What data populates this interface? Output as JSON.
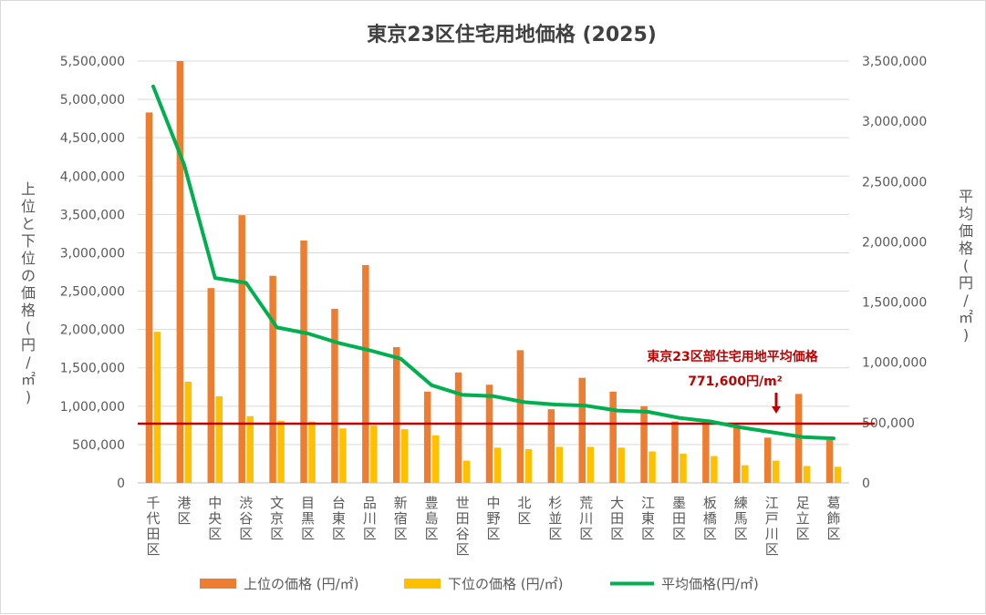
{
  "chart_data": {
    "type": "bar",
    "title": "東京23区住宅用地価格 (2025)",
    "ylabel_left": "上位と下位の価格(円/㎡)",
    "ylabel_right": "平均価格(円/㎡)",
    "ylim_left": [
      0,
      5500000
    ],
    "ylim_right": [
      0,
      3500000
    ],
    "yticks_left": [
      "0",
      "500,000",
      "1,000,000",
      "1,500,000",
      "2,000,000",
      "2,500,000",
      "3,000,000",
      "3,500,000",
      "4,000,000",
      "4,500,000",
      "5,000,000",
      "5,500,000"
    ],
    "yticks_right": [
      "0",
      "500,000",
      "1,000,000",
      "1,500,000",
      "2,000,000",
      "2,500,000",
      "3,000,000",
      "3,500,000"
    ],
    "grid": true,
    "legend_position": "bottom",
    "categories": [
      "千代田区",
      "港区",
      "中央区",
      "渋谷区",
      "文京区",
      "目黒区",
      "台東区",
      "品川区",
      "新宿区",
      "豊島区",
      "世田谷区",
      "中野区",
      "北区",
      "杉並区",
      "荒川区",
      "大田区",
      "江東区",
      "墨田区",
      "板橋区",
      "練馬区",
      "江戸川区",
      "足立区",
      "葛飾区"
    ],
    "series": [
      {
        "name": "上位の価格 (円/㎡)",
        "kind": "bar",
        "axis": "left",
        "color": "#ed7d31",
        "values": [
          4830000,
          5500000,
          2540000,
          3490000,
          2700000,
          3160000,
          2270000,
          2840000,
          1770000,
          1190000,
          1440000,
          1280000,
          1730000,
          960000,
          1370000,
          1190000,
          1000000,
          800000,
          800000,
          720000,
          590000,
          1160000,
          560000
        ]
      },
      {
        "name": "下位の価格 (円/㎡)",
        "kind": "bar",
        "axis": "left",
        "color": "#ffc000",
        "values": [
          1970000,
          1320000,
          1130000,
          870000,
          810000,
          800000,
          710000,
          750000,
          700000,
          620000,
          290000,
          460000,
          440000,
          470000,
          470000,
          460000,
          410000,
          380000,
          350000,
          230000,
          290000,
          220000,
          210000
        ]
      },
      {
        "name": "平均価格(円/㎡)",
        "kind": "line",
        "axis": "right",
        "color": "#00b050",
        "values": [
          3290000,
          2640000,
          1700000,
          1660000,
          1290000,
          1240000,
          1160000,
          1100000,
          1030000,
          810000,
          730000,
          720000,
          670000,
          650000,
          640000,
          600000,
          590000,
          540000,
          510000,
          460000,
          420000,
          380000,
          370000
        ]
      }
    ],
    "reference_line": {
      "value": 771600,
      "axis": "left",
      "color": "#c00000",
      "label": "東京23区部住宅用地平均価格",
      "value_label": "771,600円/m²"
    }
  }
}
